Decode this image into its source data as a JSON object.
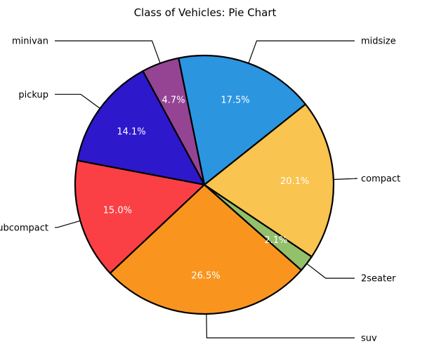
{
  "chart_data": {
    "type": "pie",
    "title": "Class of Vehicles: Pie Chart",
    "categories": [
      "2seater",
      "compact",
      "midsize",
      "minivan",
      "pickup",
      "subcompact",
      "suv"
    ],
    "values": [
      2.1,
      20.1,
      17.5,
      4.7,
      14.1,
      15.0,
      26.5
    ],
    "value_labels": [
      "2.1%",
      "20.1%",
      "17.5%",
      "4.7%",
      "14.1%",
      "15.0%",
      "26.5%"
    ],
    "colors": [
      "#93C06B",
      "#F9C44F",
      "#2B95E0",
      "#954494",
      "#2E18CC",
      "#FA4044",
      "#F9951F"
    ],
    "edge_color": "#000000",
    "legend": "none",
    "label_style": "external labels with leader lines"
  }
}
